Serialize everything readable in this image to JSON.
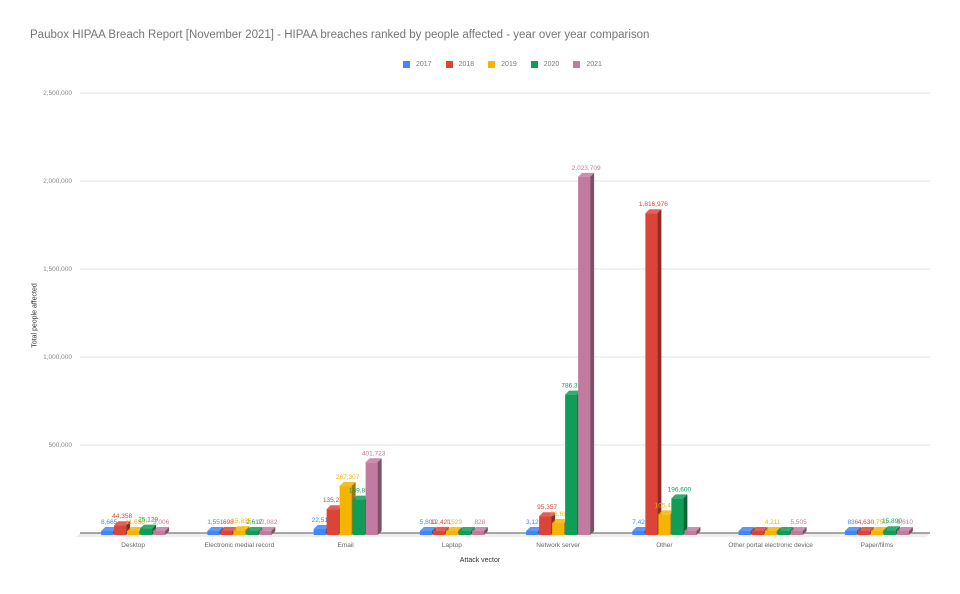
{
  "chart_data": {
    "type": "bar",
    "title": "Paubox HIPAA Breach Report [November 2021] - HIPAA breaches ranked by people affected - year over year comparison",
    "xlabel": "Attack vector",
    "ylabel": "Total people affected",
    "ylim": [
      0,
      2500000
    ],
    "yticks": [
      "500,000",
      "1,000,000",
      "1,500,000",
      "2,000,000",
      "2,500,000"
    ],
    "grid": true,
    "legend_position": "top",
    "categories": [
      "Desktop",
      "Electronic medial record",
      "Email",
      "Laptop",
      "Network server",
      "Other",
      "Other portal electronic device",
      "Paper/films"
    ],
    "series": [
      {
        "name": "2017",
        "color": "#4285f4",
        "values": [
          8665,
          1551,
          22513,
          5800,
          3123,
          7421,
          0,
          836
        ]
      },
      {
        "name": "2018",
        "color": "#db4437",
        "values": [
          44358,
          698,
          135277,
          12421,
          95357,
          1816976,
          0,
          4630
        ]
      },
      {
        "name": "2019",
        "color": "#f4b400",
        "values": [
          11630,
          15835,
          267307,
          1529,
          56611,
          105495,
          4211,
          8750
        ]
      },
      {
        "name": "2020",
        "color": "#0f9d58",
        "values": [
          25129,
          2617,
          189888,
          0,
          786329,
          196600,
          0,
          15890
        ]
      },
      {
        "name": "2021",
        "color": "#c27ba0",
        "values": [
          3006,
          12082,
          401723,
          828,
          2023709,
          0,
          5505,
          9610
        ]
      }
    ],
    "labels": [
      [
        "8,665",
        "44,358",
        "11,630",
        "25,129",
        "3,006"
      ],
      [
        "1,551",
        "698",
        "15,835",
        "2,617",
        "12,082"
      ],
      [
        "22,513",
        "135,277",
        "267,307",
        "189,888",
        "401,723"
      ],
      [
        "5,800",
        "12,421",
        "1,529",
        "",
        "828"
      ],
      [
        "3,123",
        "95,357",
        "56,611",
        "786,329",
        "2,023,709"
      ],
      [
        "7,421",
        "1,816,976",
        "105,495",
        "196,600",
        ""
      ],
      [
        "",
        "",
        "4,211",
        "",
        "5,505"
      ],
      [
        "836",
        "4,630",
        "8,750",
        "15,890",
        "9,610"
      ]
    ]
  }
}
